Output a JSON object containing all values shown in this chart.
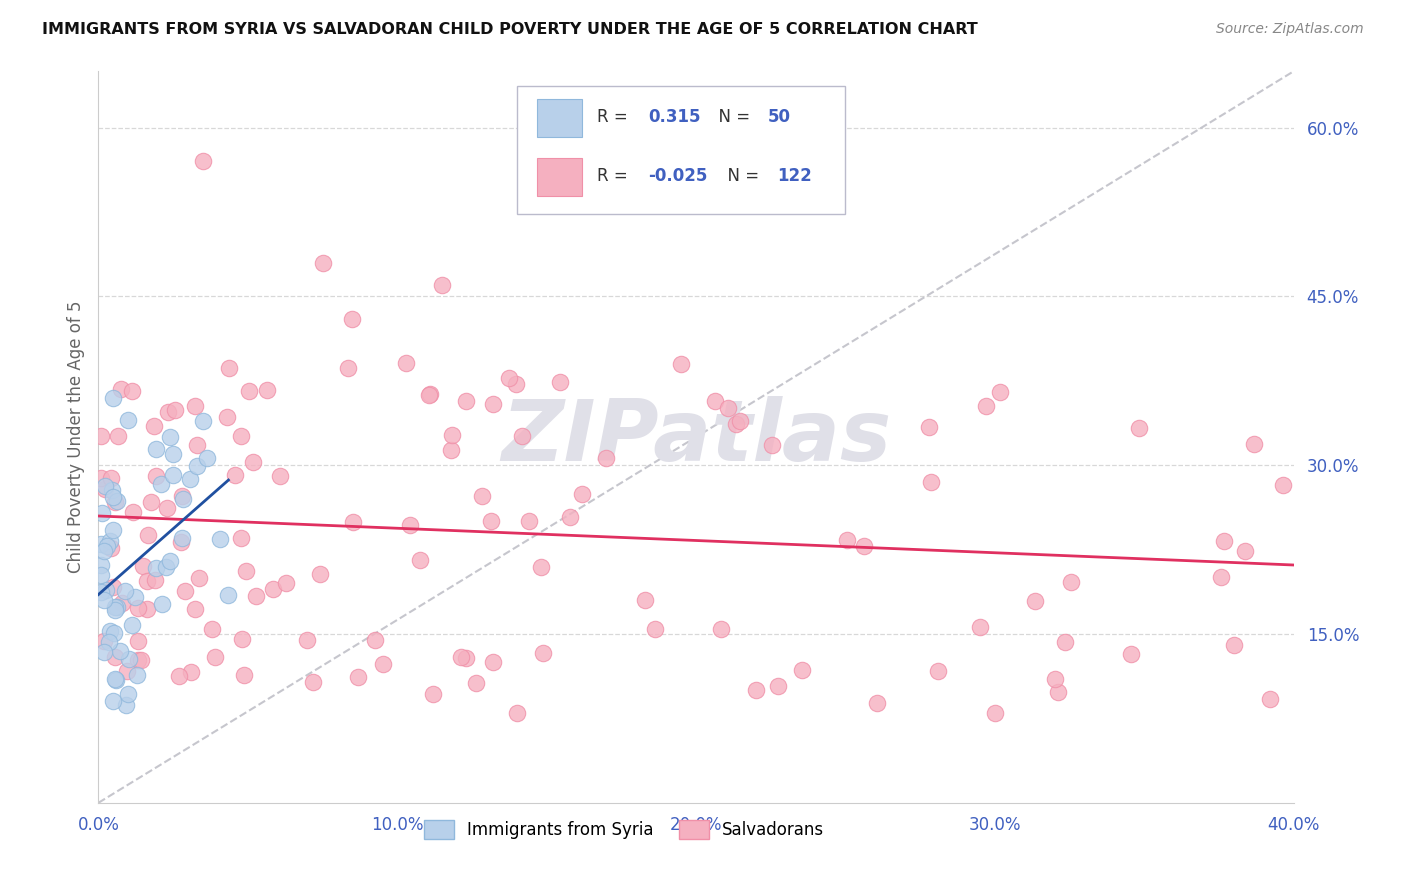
{
  "title": "IMMIGRANTS FROM SYRIA VS SALVADORAN CHILD POVERTY UNDER THE AGE OF 5 CORRELATION CHART",
  "source": "Source: ZipAtlas.com",
  "ylabel": "Child Poverty Under the Age of 5",
  "xlim": [
    0.0,
    0.4
  ],
  "ylim": [
    0.0,
    0.65
  ],
  "yticks": [
    0.15,
    0.3,
    0.45,
    0.6
  ],
  "ytick_labels": [
    "15.0%",
    "30.0%",
    "45.0%",
    "60.0%"
  ],
  "xticks": [
    0.0,
    0.1,
    0.2,
    0.3,
    0.4
  ],
  "xtick_labels": [
    "0.0%",
    "10.0%",
    "20.0%",
    "30.0%",
    "40.0%"
  ],
  "blue_color": "#b8d0ea",
  "pink_color": "#f5b0c0",
  "blue_edge": "#90b8dc",
  "pink_edge": "#f090a8",
  "trend_blue_color": "#2050a0",
  "trend_pink_color": "#e03060",
  "trend_gray_color": "#c0c0c8",
  "legend_R_blue": "0.315",
  "legend_N_blue": "50",
  "legend_R_pink": "-0.025",
  "legend_N_pink": "122",
  "legend_label_blue": "Immigrants from Syria",
  "legend_label_pink": "Salvadorans",
  "background_color": "#ffffff",
  "grid_color": "#d8d8d8",
  "watermark_color": "#e0e0e8",
  "tick_color": "#4060c0",
  "ylabel_color": "#666666",
  "title_color": "#111111",
  "source_color": "#888888"
}
